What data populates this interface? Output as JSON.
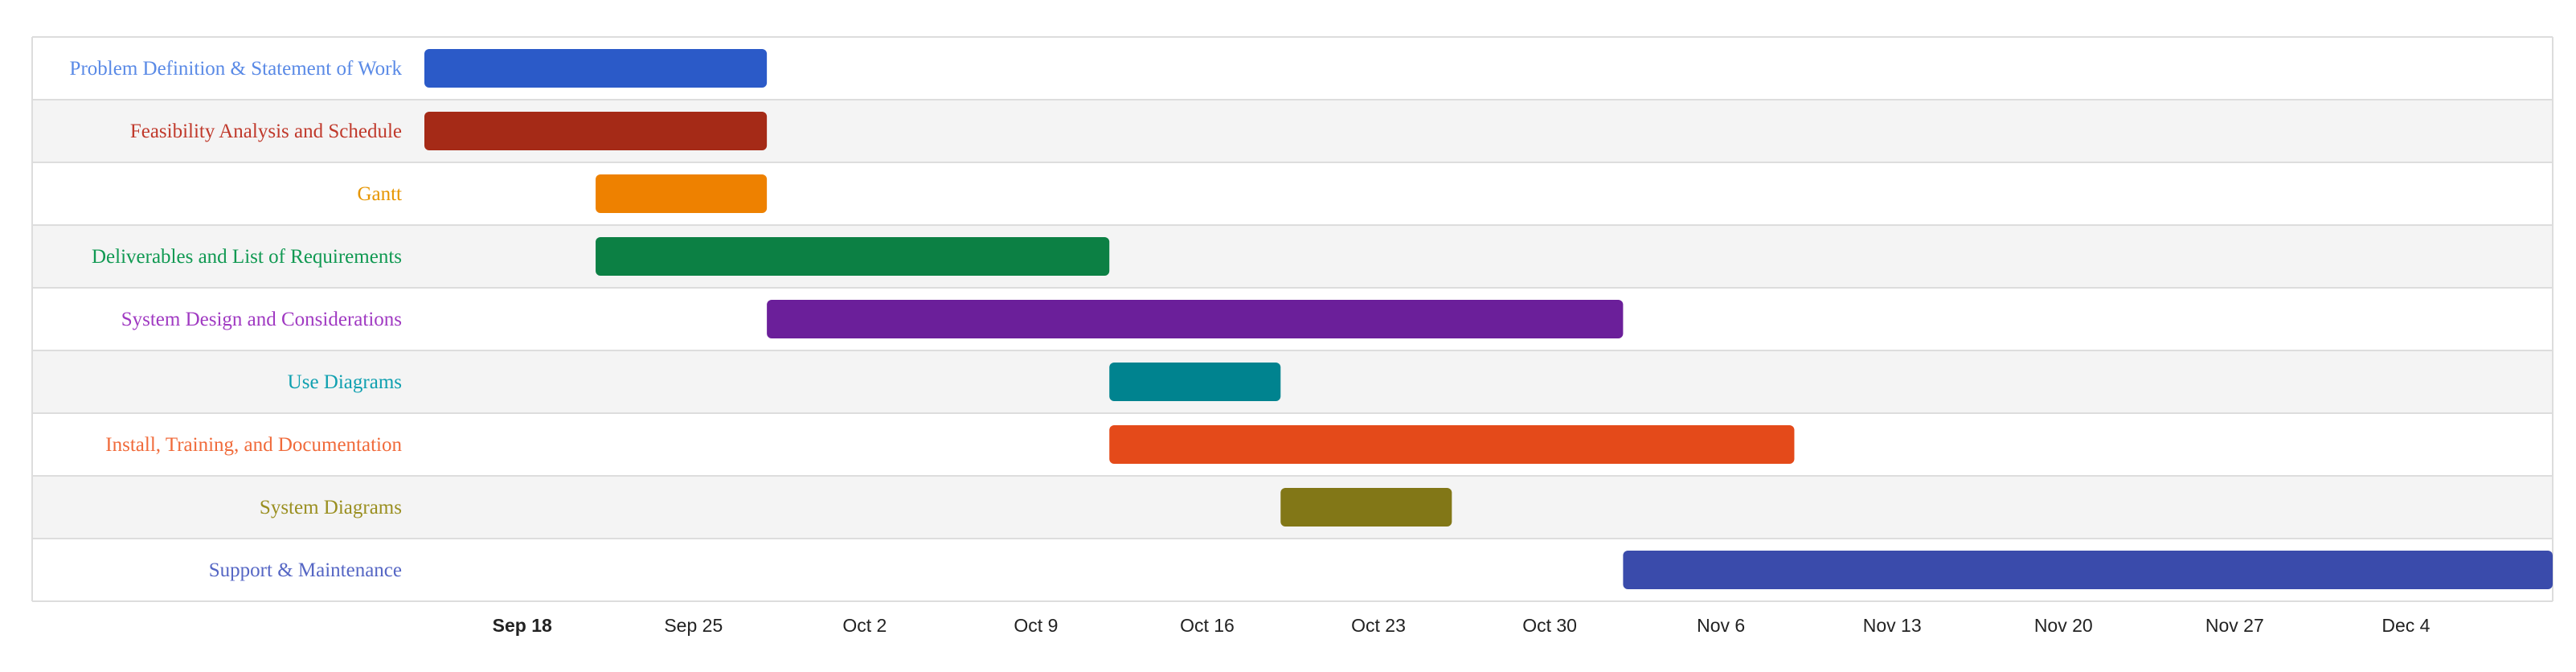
{
  "chart_data": {
    "type": "gantt",
    "title": "",
    "xlabel": "",
    "ylabel": "",
    "x_ticks": [
      "Sep 18",
      "Sep 25",
      "Oct 2",
      "Oct 9",
      "Oct 16",
      "Oct 23",
      "Oct 30",
      "Nov 6",
      "Nov 13",
      "Nov 20",
      "Nov 27",
      "Dec 4"
    ],
    "bold_tick": "Sep 18",
    "x_range": [
      "Sep 14",
      "Dec 10"
    ],
    "tasks": [
      {
        "name": "Problem Definition & Statement of Work",
        "start": "Sep 14",
        "end": "Sep 28",
        "color": "#2b5ac8",
        "label_color": "#5a8ae6"
      },
      {
        "name": "Feasibility Analysis and Schedule",
        "start": "Sep 14",
        "end": "Sep 28",
        "color": "#a52a17",
        "label_color": "#c0392b"
      },
      {
        "name": "Gantt",
        "start": "Sep 21",
        "end": "Sep 28",
        "color": "#ee8100",
        "label_color": "#e69500"
      },
      {
        "name": "Deliverables and List of Requirements",
        "start": "Sep 21",
        "end": "Oct 12",
        "color": "#0c8044",
        "label_color": "#109952"
      },
      {
        "name": "System Design and Considerations",
        "start": "Sep 28",
        "end": "Nov 2",
        "color": "#6b1f9a",
        "label_color": "#a03ac2"
      },
      {
        "name": "Use Diagrams",
        "start": "Oct 12",
        "end": "Oct 19",
        "color": "#00838f",
        "label_color": "#0fa0b0"
      },
      {
        "name": "Install, Training, and Documentation",
        "start": "Oct 12",
        "end": "Nov 9",
        "color": "#e44a1a",
        "label_color": "#f06a3a"
      },
      {
        "name": "System Diagrams",
        "start": "Oct 19",
        "end": "Oct 26",
        "color": "#827717",
        "label_color": "#9a8f20"
      },
      {
        "name": "Support & Maintenance",
        "start": "Nov 2",
        "end": "Dec 10",
        "color": "#3a4bab",
        "label_color": "#5566c4"
      }
    ],
    "grid": true
  }
}
